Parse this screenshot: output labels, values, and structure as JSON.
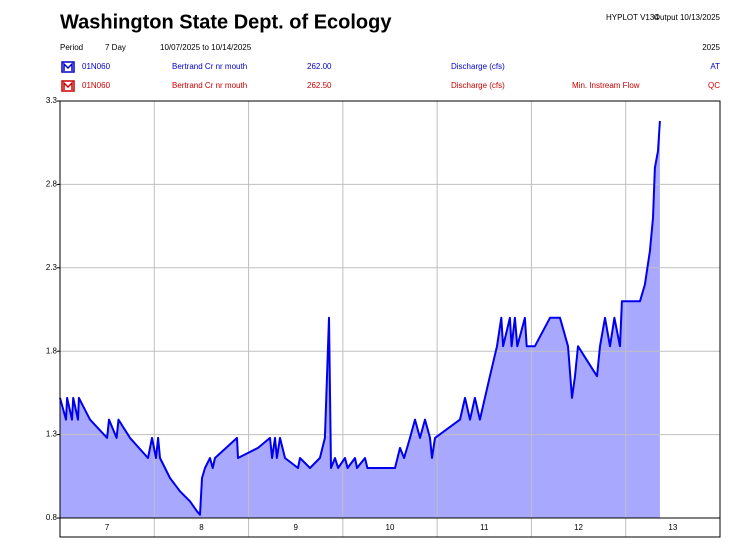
{
  "chart_data": {
    "type": "area",
    "title": "Washington State Dept. of Ecology",
    "program": "HYPLOT V134",
    "output": "Output 10/13/2025",
    "period_label": "Period",
    "period": "7 Day",
    "date_range": "10/07/2025  to  10/14/2025",
    "year": "2025",
    "legend": [
      {
        "site": "01N060",
        "name": "Bertrand Cr nr mouth",
        "code": "262.00",
        "parameter": "Discharge (cfs)",
        "note": "",
        "flag": "AT",
        "color": "#0000cc"
      },
      {
        "site": "01N060",
        "name": "Bertrand Cr nr mouth",
        "code": "262.50",
        "parameter": "Discharge (cfs)",
        "note": "Min. Instream Flow",
        "flag": "QC",
        "color": "#cc0000"
      }
    ],
    "series": [
      {
        "name": "Discharge (cfs)",
        "color": "#0000ee",
        "fill": "#a8a8ff",
        "x": [
          7.0,
          7.064,
          7.075,
          7.127,
          7.14,
          7.191,
          7.2,
          7.318,
          7.5,
          7.52,
          7.6,
          7.62,
          7.742,
          7.933,
          7.976,
          8.018,
          8.04,
          8.061,
          8.114,
          8.167,
          8.273,
          8.379,
          8.453,
          8.485,
          8.506,
          8.538,
          8.591,
          8.62,
          8.644,
          8.877,
          8.888,
          9.1,
          9.227,
          9.25,
          9.28,
          9.3,
          9.333,
          9.386,
          9.524,
          9.545,
          9.651,
          9.757,
          9.81,
          9.853,
          9.874,
          9.917,
          9.95,
          10.023,
          10.05,
          10.129,
          10.15,
          10.235,
          10.26,
          10.341,
          10.553,
          10.606,
          10.65,
          10.712,
          10.765,
          10.818,
          10.871,
          10.924,
          10.945,
          10.977,
          11.242,
          11.295,
          11.348,
          11.4,
          11.454,
          11.507,
          11.56,
          11.635,
          11.68,
          11.7,
          11.772,
          11.79,
          11.825,
          11.85,
          11.931,
          11.95,
          12.037,
          12.197,
          12.303,
          12.388,
          12.43,
          12.462,
          12.494,
          12.695,
          12.727,
          12.78,
          12.833,
          12.88,
          12.939,
          12.96,
          13.151,
          13.204,
          13.257,
          13.289,
          13.31,
          13.342,
          13.363
        ],
        "values": [
          1.52,
          1.39,
          1.52,
          1.39,
          1.52,
          1.39,
          1.52,
          1.39,
          1.28,
          1.39,
          1.28,
          1.39,
          1.28,
          1.16,
          1.28,
          1.16,
          1.28,
          1.16,
          1.1,
          1.04,
          0.96,
          0.9,
          0.84,
          0.82,
          1.04,
          1.1,
          1.16,
          1.1,
          1.16,
          1.28,
          1.16,
          1.22,
          1.28,
          1.16,
          1.28,
          1.16,
          1.28,
          1.16,
          1.1,
          1.16,
          1.1,
          1.16,
          1.28,
          2.0,
          1.1,
          1.16,
          1.1,
          1.16,
          1.1,
          1.16,
          1.1,
          1.16,
          1.1,
          1.1,
          1.1,
          1.22,
          1.16,
          1.28,
          1.39,
          1.28,
          1.39,
          1.28,
          1.16,
          1.28,
          1.39,
          1.52,
          1.39,
          1.52,
          1.39,
          1.52,
          1.65,
          1.83,
          2.0,
          1.83,
          2.0,
          1.83,
          2.0,
          1.83,
          2.0,
          1.83,
          1.83,
          2.0,
          2.0,
          1.83,
          1.52,
          1.65,
          1.83,
          1.65,
          1.83,
          2.0,
          1.83,
          2.0,
          1.83,
          2.1,
          2.1,
          2.2,
          2.4,
          2.6,
          2.9,
          3.0,
          3.18
        ]
      }
    ],
    "xlim": [
      7,
      14
    ],
    "xticks": [
      7,
      8,
      9,
      10,
      11,
      12,
      13
    ],
    "ylim": [
      0.8,
      3.3
    ],
    "yticks": [
      0.8,
      1.3,
      1.8,
      2.3,
      2.8,
      3.3
    ],
    "grid": true
  }
}
